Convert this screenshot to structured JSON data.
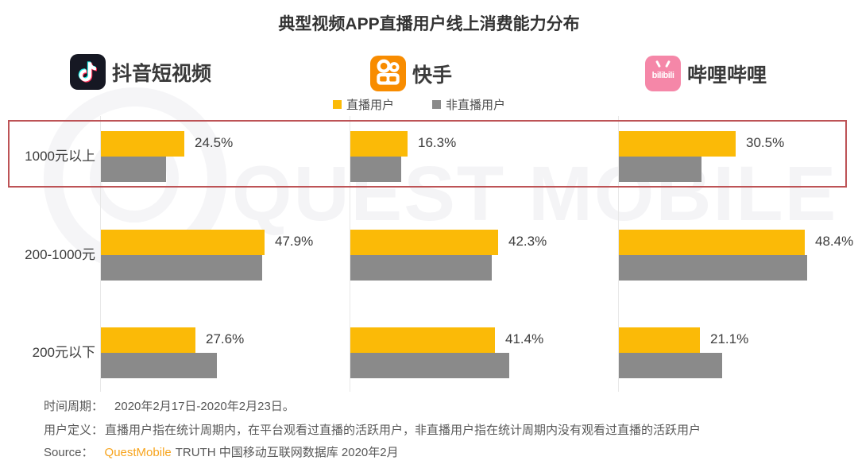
{
  "title": "典型视频APP直播用户线上消费能力分布",
  "watermark": {
    "text": "QUEST MOBILE"
  },
  "apps": [
    {
      "name": "抖音短视频",
      "icon": "douyin"
    },
    {
      "name": "快手",
      "icon": "kuaishou"
    },
    {
      "name": "哔哩哔哩",
      "icon": "bilibili",
      "icon_label": "bilibili"
    }
  ],
  "legend": {
    "live": "直播用户",
    "non_live": "非直播用户"
  },
  "chart_data": {
    "type": "bar",
    "orientation": "horizontal",
    "title": "典型视频APP直播用户线上消费能力分布",
    "categories": [
      "1000元以上",
      "200-1000元",
      "200元以下"
    ],
    "legend_entries": [
      "直播用户",
      "非直播用户"
    ],
    "unit": "%",
    "groups": [
      {
        "app": "抖音短视频",
        "live_values": [
          24.5,
          47.9,
          27.6
        ],
        "live_labels": [
          "24.5%",
          "47.9%",
          "27.6%"
        ],
        "non_live_values_estimated": [
          19.0,
          47.3,
          34.0
        ]
      },
      {
        "app": "快手",
        "live_values": [
          16.3,
          42.3,
          41.4
        ],
        "live_labels": [
          "16.3%",
          "42.3%",
          "41.4%"
        ],
        "non_live_values_estimated": [
          14.5,
          40.5,
          45.5
        ]
      },
      {
        "app": "哔哩哔哩",
        "live_values": [
          30.5,
          48.4,
          21.1
        ],
        "live_labels": [
          "30.5%",
          "48.4%",
          "21.1%"
        ],
        "non_live_values_estimated": [
          21.5,
          49.0,
          27.0
        ]
      }
    ],
    "notes": "非直播用户 bars carry no data labels in the source; their values are estimated from bar lengths. The 1000元以上 row is outlined with a red highlight rectangle."
  },
  "footer": {
    "period_label": "时间周期：",
    "period_value": "2020年2月17日-2020年2月23日。",
    "definition_label": "用户定义：",
    "definition_value": "直播用户指在统计周期内，在平台观看过直播的活跃用户，非直播用户指在统计周期内没有观看过直播的活跃用户",
    "source_label": "Source：",
    "source_brand": "QuestMobile",
    "source_rest": "TRUTH 中国移动互联网数据库 2020年2月"
  },
  "colors": {
    "live_bar": "#FBBA07",
    "non_live_bar": "#8A8A8A",
    "highlight_border": "#BD5356",
    "source_brand_orange": "#F7A41D",
    "douyin_icon_bg": "#161823",
    "kuaishou_icon_bg": "#F88C00",
    "bilibili_icon_bg": "#F587A8",
    "watermark": "#F4F4F6"
  }
}
